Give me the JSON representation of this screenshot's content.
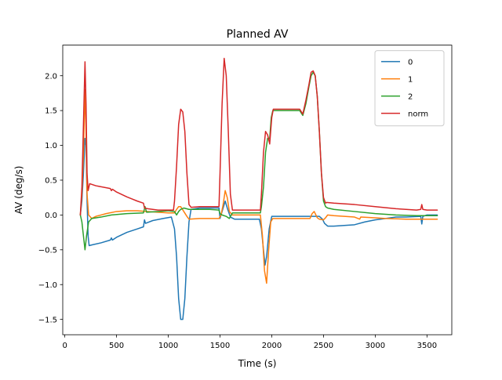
{
  "chart_data": {
    "type": "line",
    "title": "Planned AV",
    "xlabel": "Time (s)",
    "ylabel": "AV (deg/s)",
    "xlim": [
      -20,
      3740
    ],
    "ylim": [
      -1.72,
      2.44
    ],
    "xticks": [
      0,
      500,
      1000,
      1500,
      2000,
      2500,
      3000,
      3500
    ],
    "yticks": [
      -1.5,
      -1.0,
      -0.5,
      0.0,
      0.5,
      1.0,
      1.5,
      2.0
    ],
    "xtick_labels": [
      "0",
      "500",
      "1000",
      "1500",
      "2000",
      "2500",
      "3000",
      "3500"
    ],
    "ytick_labels": [
      "−1.5",
      "−1.0",
      "−0.5",
      "0.0",
      "0.5",
      "1.0",
      "1.5",
      "2.0"
    ],
    "grid": false,
    "legend_position": "top-right",
    "series": [
      {
        "name": "0",
        "color": "#1f77b4",
        "points": [
          [
            150,
            0.0
          ],
          [
            165,
            0.2
          ],
          [
            180,
            0.6
          ],
          [
            195,
            1.1
          ],
          [
            205,
            1.0
          ],
          [
            215,
            0.2
          ],
          [
            225,
            -0.3
          ],
          [
            235,
            -0.44
          ],
          [
            260,
            -0.43
          ],
          [
            350,
            -0.4
          ],
          [
            440,
            -0.36
          ],
          [
            450,
            -0.33
          ],
          [
            460,
            -0.36
          ],
          [
            500,
            -0.32
          ],
          [
            600,
            -0.25
          ],
          [
            700,
            -0.2
          ],
          [
            760,
            -0.17
          ],
          [
            770,
            -0.07
          ],
          [
            780,
            -0.12
          ],
          [
            850,
            -0.08
          ],
          [
            950,
            -0.05
          ],
          [
            1030,
            -0.03
          ],
          [
            1060,
            -0.2
          ],
          [
            1080,
            -0.6
          ],
          [
            1100,
            -1.2
          ],
          [
            1120,
            -1.5
          ],
          [
            1140,
            -1.5
          ],
          [
            1160,
            -1.2
          ],
          [
            1180,
            -0.6
          ],
          [
            1200,
            -0.1
          ],
          [
            1220,
            0.08
          ],
          [
            1300,
            0.1
          ],
          [
            1400,
            0.1
          ],
          [
            1490,
            0.1
          ],
          [
            1500,
            -0.05
          ],
          [
            1520,
            0.05
          ],
          [
            1550,
            0.2
          ],
          [
            1570,
            0.1
          ],
          [
            1600,
            -0.03
          ],
          [
            1640,
            -0.06
          ],
          [
            1700,
            -0.06
          ],
          [
            1800,
            -0.06
          ],
          [
            1880,
            -0.06
          ],
          [
            1900,
            -0.2
          ],
          [
            1920,
            -0.5
          ],
          [
            1935,
            -0.72
          ],
          [
            1950,
            -0.6
          ],
          [
            1975,
            -0.2
          ],
          [
            2000,
            -0.02
          ],
          [
            2010,
            -0.02
          ],
          [
            2100,
            -0.02
          ],
          [
            2200,
            -0.02
          ],
          [
            2300,
            -0.02
          ],
          [
            2400,
            -0.02
          ],
          [
            2460,
            -0.02
          ],
          [
            2490,
            -0.06
          ],
          [
            2510,
            -0.12
          ],
          [
            2540,
            -0.16
          ],
          [
            2600,
            -0.16
          ],
          [
            2800,
            -0.14
          ],
          [
            2900,
            -0.1
          ],
          [
            3000,
            -0.07
          ],
          [
            3100,
            -0.05
          ],
          [
            3200,
            -0.03
          ],
          [
            3300,
            -0.03
          ],
          [
            3440,
            -0.02
          ],
          [
            3450,
            -0.13
          ],
          [
            3460,
            -0.02
          ],
          [
            3500,
            0.0
          ],
          [
            3600,
            0.0
          ]
        ]
      },
      {
        "name": "1",
        "color": "#ff7f0e",
        "points": [
          [
            150,
            0.0
          ],
          [
            165,
            0.3
          ],
          [
            180,
            0.9
          ],
          [
            195,
            1.8
          ],
          [
            205,
            1.2
          ],
          [
            215,
            0.3
          ],
          [
            230,
            0.0
          ],
          [
            260,
            -0.05
          ],
          [
            300,
            -0.02
          ],
          [
            400,
            0.02
          ],
          [
            500,
            0.05
          ],
          [
            600,
            0.06
          ],
          [
            700,
            0.06
          ],
          [
            800,
            0.05
          ],
          [
            900,
            0.04
          ],
          [
            1000,
            0.03
          ],
          [
            1060,
            0.03
          ],
          [
            1080,
            0.08
          ],
          [
            1100,
            0.12
          ],
          [
            1120,
            0.12
          ],
          [
            1150,
            0.05
          ],
          [
            1180,
            -0.02
          ],
          [
            1200,
            -0.06
          ],
          [
            1300,
            -0.05
          ],
          [
            1400,
            -0.05
          ],
          [
            1490,
            -0.05
          ],
          [
            1510,
            0.0
          ],
          [
            1530,
            0.15
          ],
          [
            1550,
            0.35
          ],
          [
            1570,
            0.25
          ],
          [
            1590,
            0.05
          ],
          [
            1620,
            0.0
          ],
          [
            1700,
            0.0
          ],
          [
            1800,
            0.0
          ],
          [
            1890,
            0.0
          ],
          [
            1910,
            -0.3
          ],
          [
            1930,
            -0.8
          ],
          [
            1950,
            -0.98
          ],
          [
            1970,
            -0.5
          ],
          [
            1990,
            -0.1
          ],
          [
            2010,
            -0.05
          ],
          [
            2100,
            -0.05
          ],
          [
            2200,
            -0.05
          ],
          [
            2300,
            -0.05
          ],
          [
            2370,
            -0.05
          ],
          [
            2390,
            0.02
          ],
          [
            2410,
            0.05
          ],
          [
            2440,
            -0.04
          ],
          [
            2460,
            -0.06
          ],
          [
            2500,
            -0.07
          ],
          [
            2520,
            -0.04
          ],
          [
            2540,
            0.0
          ],
          [
            2600,
            -0.01
          ],
          [
            2800,
            -0.03
          ],
          [
            2850,
            -0.06
          ],
          [
            2860,
            -0.03
          ],
          [
            3000,
            -0.04
          ],
          [
            3100,
            -0.05
          ],
          [
            3300,
            -0.06
          ],
          [
            3450,
            -0.06
          ],
          [
            3600,
            -0.06
          ]
        ]
      },
      {
        "name": "2",
        "color": "#2ca02c",
        "points": [
          [
            150,
            0.0
          ],
          [
            165,
            -0.1
          ],
          [
            180,
            -0.3
          ],
          [
            195,
            -0.5
          ],
          [
            210,
            -0.3
          ],
          [
            230,
            -0.1
          ],
          [
            260,
            -0.05
          ],
          [
            350,
            -0.03
          ],
          [
            450,
            0.0
          ],
          [
            600,
            0.02
          ],
          [
            760,
            0.03
          ],
          [
            775,
            0.12
          ],
          [
            790,
            0.04
          ],
          [
            900,
            0.05
          ],
          [
            1000,
            0.06
          ],
          [
            1060,
            0.05
          ],
          [
            1080,
            0.0
          ],
          [
            1100,
            0.05
          ],
          [
            1120,
            0.08
          ],
          [
            1150,
            0.1
          ],
          [
            1200,
            0.08
          ],
          [
            1300,
            0.08
          ],
          [
            1400,
            0.08
          ],
          [
            1490,
            0.07
          ],
          [
            1500,
            0.02
          ],
          [
            1520,
            0.0
          ],
          [
            1560,
            -0.02
          ],
          [
            1590,
            -0.05
          ],
          [
            1620,
            0.03
          ],
          [
            1700,
            0.03
          ],
          [
            1800,
            0.03
          ],
          [
            1890,
            0.03
          ],
          [
            1900,
            0.12
          ],
          [
            1920,
            0.4
          ],
          [
            1940,
            0.9
          ],
          [
            1960,
            1.1
          ],
          [
            1980,
            1.1
          ],
          [
            1995,
            1.4
          ],
          [
            2010,
            1.5
          ],
          [
            2100,
            1.5
          ],
          [
            2200,
            1.5
          ],
          [
            2270,
            1.5
          ],
          [
            2300,
            1.43
          ],
          [
            2330,
            1.6
          ],
          [
            2360,
            1.85
          ],
          [
            2380,
            2.0
          ],
          [
            2400,
            2.05
          ],
          [
            2420,
            2.0
          ],
          [
            2440,
            1.7
          ],
          [
            2460,
            1.2
          ],
          [
            2480,
            0.6
          ],
          [
            2500,
            0.2
          ],
          [
            2520,
            0.12
          ],
          [
            2540,
            0.1
          ],
          [
            2600,
            0.08
          ],
          [
            2800,
            0.05
          ],
          [
            3000,
            0.02
          ],
          [
            3200,
            0.0
          ],
          [
            3400,
            -0.01
          ],
          [
            3600,
            -0.01
          ]
        ]
      },
      {
        "name": "norm",
        "color": "#d62728",
        "points": [
          [
            150,
            0.0
          ],
          [
            165,
            0.4
          ],
          [
            180,
            1.3
          ],
          [
            195,
            2.2
          ],
          [
            205,
            1.6
          ],
          [
            215,
            0.6
          ],
          [
            225,
            0.35
          ],
          [
            240,
            0.45
          ],
          [
            300,
            0.42
          ],
          [
            440,
            0.38
          ],
          [
            450,
            0.35
          ],
          [
            460,
            0.37
          ],
          [
            500,
            0.33
          ],
          [
            600,
            0.26
          ],
          [
            700,
            0.2
          ],
          [
            760,
            0.17
          ],
          [
            770,
            0.1
          ],
          [
            800,
            0.09
          ],
          [
            900,
            0.07
          ],
          [
            1000,
            0.07
          ],
          [
            1050,
            0.07
          ],
          [
            1060,
            0.2
          ],
          [
            1080,
            0.7
          ],
          [
            1100,
            1.3
          ],
          [
            1120,
            1.52
          ],
          [
            1140,
            1.48
          ],
          [
            1160,
            1.2
          ],
          [
            1180,
            0.6
          ],
          [
            1200,
            0.15
          ],
          [
            1220,
            0.11
          ],
          [
            1300,
            0.12
          ],
          [
            1400,
            0.12
          ],
          [
            1490,
            0.12
          ],
          [
            1500,
            0.6
          ],
          [
            1520,
            1.6
          ],
          [
            1540,
            2.25
          ],
          [
            1560,
            2.0
          ],
          [
            1580,
            1.2
          ],
          [
            1600,
            0.3
          ],
          [
            1620,
            0.07
          ],
          [
            1700,
            0.07
          ],
          [
            1800,
            0.07
          ],
          [
            1890,
            0.07
          ],
          [
            1900,
            0.3
          ],
          [
            1920,
            0.9
          ],
          [
            1940,
            1.2
          ],
          [
            1960,
            1.15
          ],
          [
            1980,
            1.02
          ],
          [
            2000,
            1.4
          ],
          [
            2015,
            1.52
          ],
          [
            2100,
            1.52
          ],
          [
            2200,
            1.52
          ],
          [
            2270,
            1.52
          ],
          [
            2300,
            1.45
          ],
          [
            2330,
            1.65
          ],
          [
            2360,
            1.88
          ],
          [
            2380,
            2.05
          ],
          [
            2400,
            2.07
          ],
          [
            2420,
            2.0
          ],
          [
            2440,
            1.7
          ],
          [
            2460,
            1.2
          ],
          [
            2480,
            0.6
          ],
          [
            2500,
            0.25
          ],
          [
            2520,
            0.17
          ],
          [
            2530,
            0.18
          ],
          [
            2600,
            0.17
          ],
          [
            2800,
            0.15
          ],
          [
            3000,
            0.12
          ],
          [
            3200,
            0.09
          ],
          [
            3400,
            0.07
          ],
          [
            3440,
            0.08
          ],
          [
            3450,
            0.15
          ],
          [
            3460,
            0.08
          ],
          [
            3500,
            0.07
          ],
          [
            3600,
            0.07
          ]
        ]
      }
    ]
  }
}
